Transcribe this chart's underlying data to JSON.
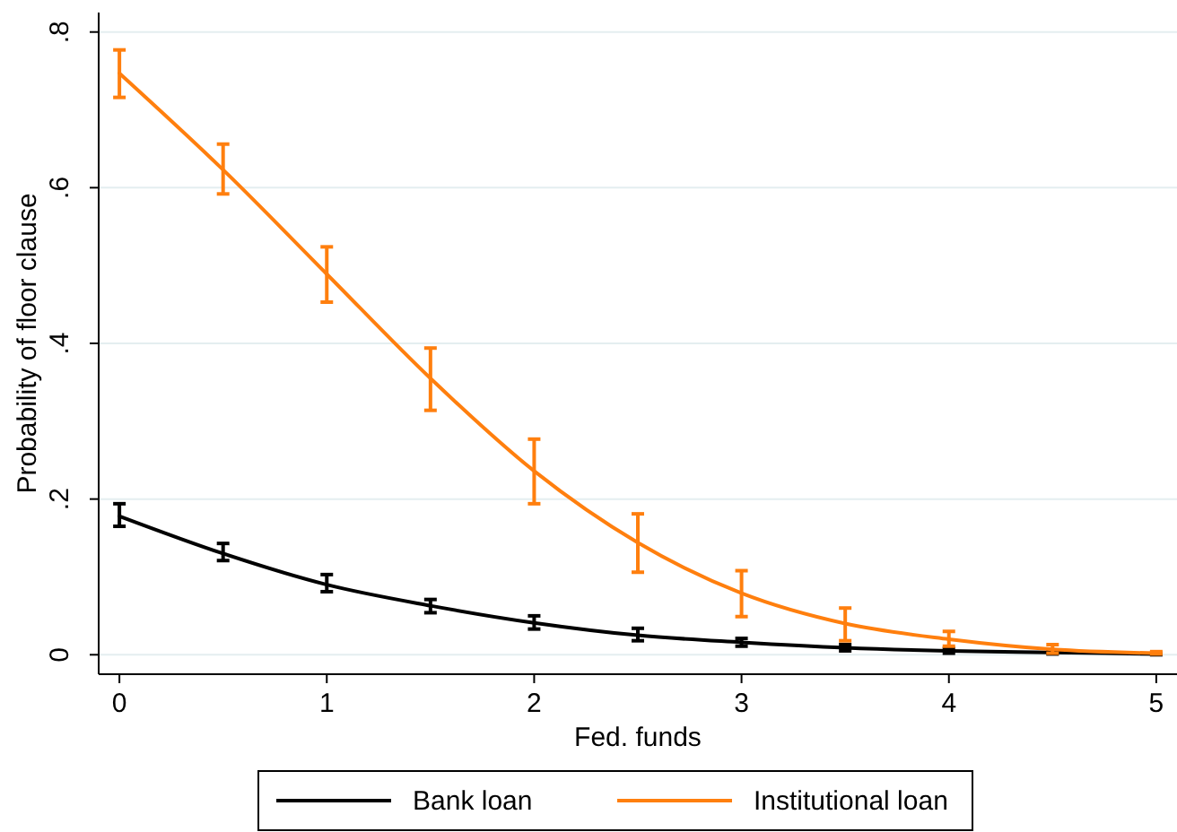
{
  "chart_data": {
    "type": "line",
    "xlabel": "Fed. funds",
    "ylabel": "Probability of floor clause",
    "x": [
      0,
      0.5,
      1,
      1.5,
      2,
      2.5,
      3,
      3.5,
      4,
      4.5,
      5
    ],
    "series": [
      {
        "name": "Bank loan",
        "color": "#000000",
        "values": [
          0.178,
          0.13,
          0.09,
          0.063,
          0.041,
          0.025,
          0.016,
          0.009,
          0.005,
          0.003,
          0.001
        ],
        "errors": [
          [
            0.165,
            0.194
          ],
          [
            0.121,
            0.143
          ],
          [
            0.081,
            0.103
          ],
          [
            0.054,
            0.071
          ],
          [
            0.033,
            0.05
          ],
          [
            0.018,
            0.034
          ],
          [
            0.011,
            0.021
          ],
          [
            0.005,
            0.013
          ],
          [
            0.002,
            0.008
          ],
          [
            0.001,
            0.005
          ],
          [
            0,
            0.002
          ]
        ]
      },
      {
        "name": "Institutional loan",
        "color": "#ff7f0e",
        "values": [
          0.747,
          0.623,
          0.489,
          0.355,
          0.236,
          0.144,
          0.079,
          0.04,
          0.02,
          0.007,
          0.002
        ],
        "errors": [
          [
            0.716,
            0.777
          ],
          [
            0.592,
            0.656
          ],
          [
            0.453,
            0.524
          ],
          [
            0.314,
            0.394
          ],
          [
            0.194,
            0.277
          ],
          [
            0.106,
            0.181
          ],
          [
            0.049,
            0.108
          ],
          [
            0.018,
            0.06
          ],
          [
            0.011,
            0.03
          ],
          [
            0.002,
            0.013
          ],
          [
            0.001,
            0.004
          ]
        ]
      }
    ],
    "xlim": [
      -0.1,
      5.1
    ],
    "xticks": [
      0,
      1,
      2,
      3,
      4,
      5
    ],
    "ylim": [
      -0.025,
      0.825
    ],
    "yticks": [
      0,
      {
        "value": 0.2,
        "label": ".2"
      },
      {
        "value": 0.4,
        "label": ".4"
      },
      {
        "value": 0.6,
        "label": ".6"
      },
      {
        "value": 0.8,
        "label": ".8"
      }
    ],
    "grid": "y",
    "legend": "bottom"
  }
}
